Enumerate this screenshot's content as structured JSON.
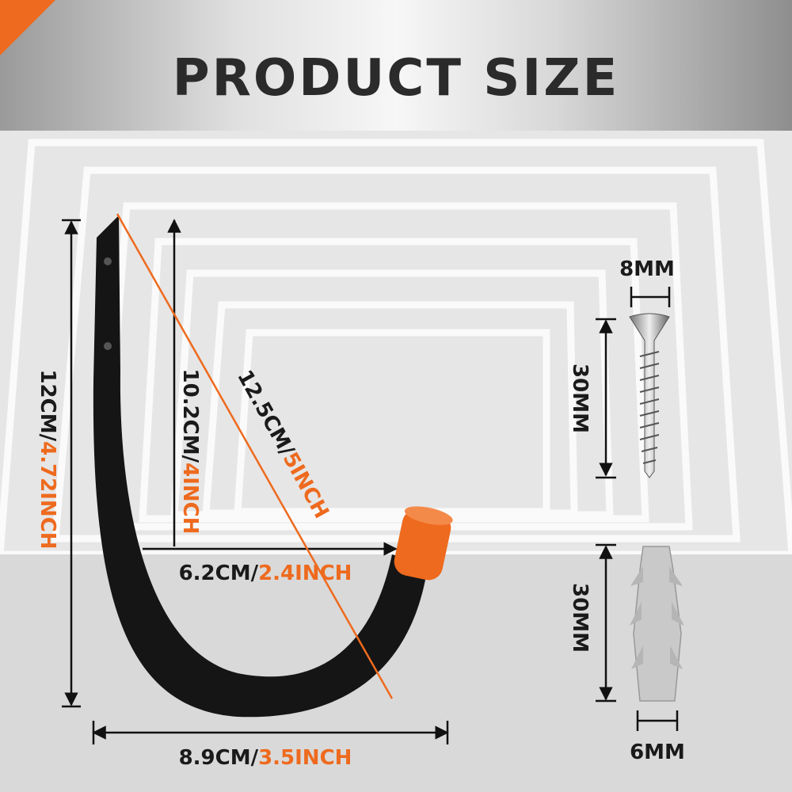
{
  "header": {
    "title": "PRODUCT SIZE"
  },
  "colors": {
    "accent": "#ee6a1e",
    "hook": "#151515",
    "cap": "#ee6a1e",
    "background": "#e6e6e6"
  },
  "hook": {
    "height": {
      "metric": "12CM/",
      "imperial": "4.72INCH"
    },
    "inner_height": {
      "metric": "10.2CM/",
      "imperial": "4INCH"
    },
    "diagonal": {
      "metric": "12.5CM/",
      "imperial": "5INCH"
    },
    "inner_width": {
      "metric": "6.2CM/",
      "imperial": "2.4INCH"
    },
    "width": {
      "metric": "8.9CM/",
      "imperial": "3.5INCH"
    }
  },
  "screw": {
    "diameter": "8MM",
    "length": "30MM"
  },
  "anchor": {
    "length": "30MM",
    "diameter": "6MM"
  }
}
